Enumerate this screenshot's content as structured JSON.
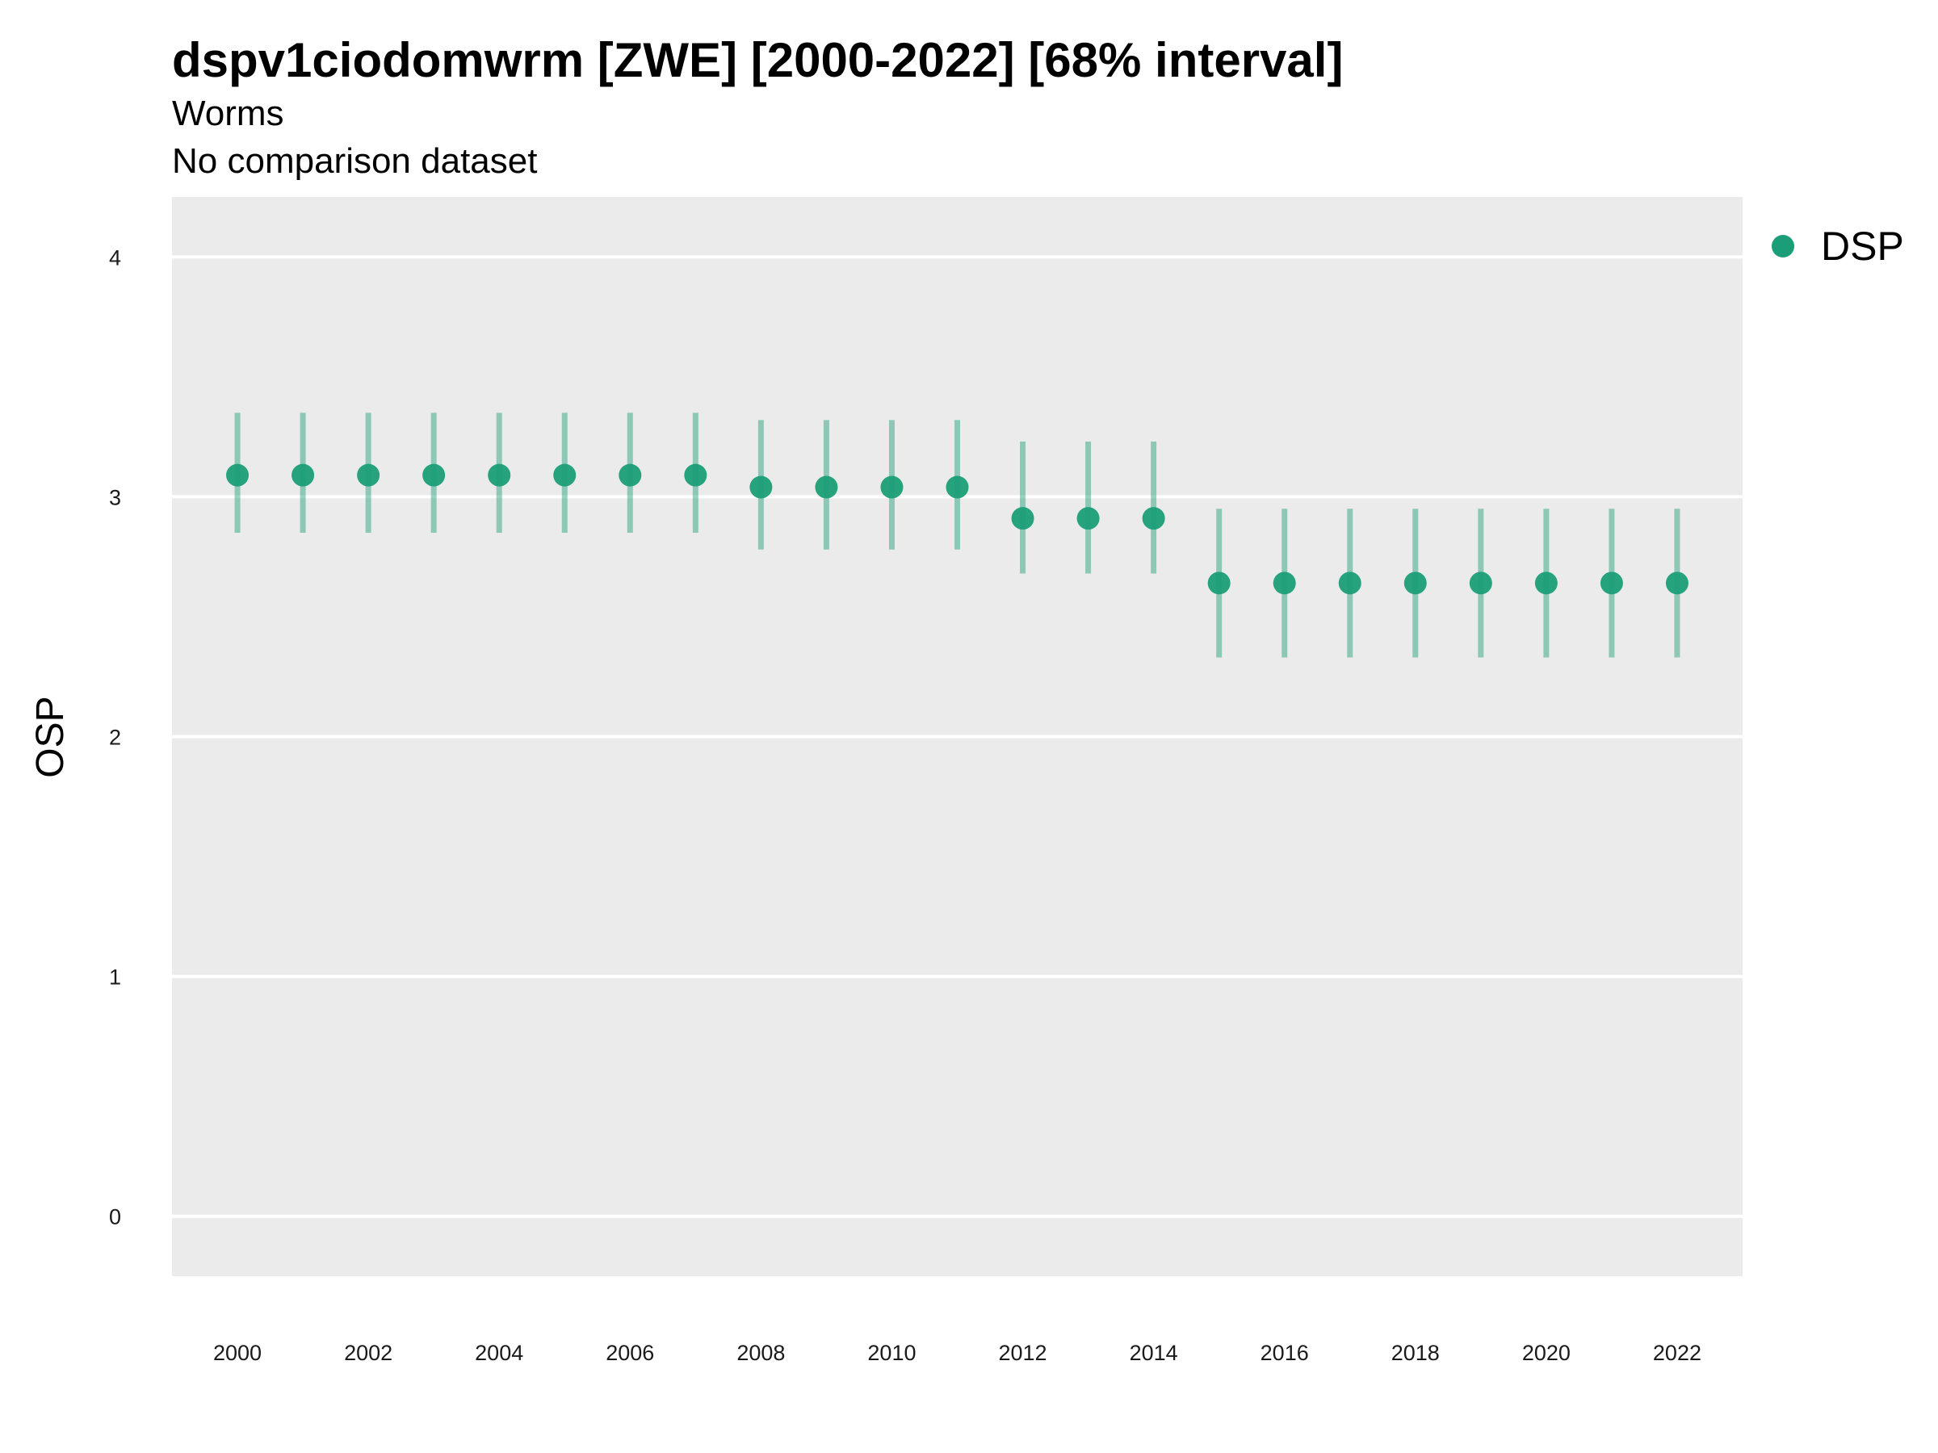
{
  "colors": {
    "panel": "#EBEBEB",
    "grid": "#FFFFFF",
    "series": "#1B9E77"
  },
  "chart_data": {
    "type": "scatter",
    "title": "dspv1ciodomwrm [ZWE] [2000-2022] [68% interval]",
    "subtitle": "Worms",
    "caption": "No comparison dataset",
    "ylabel": "OSP",
    "xlabel": "",
    "ylim": [
      -0.25,
      4.25
    ],
    "yticks": [
      0,
      1,
      2,
      3,
      4
    ],
    "xlim": [
      1999.0,
      2023.0
    ],
    "xticks": [
      2000,
      2002,
      2004,
      2006,
      2008,
      2010,
      2012,
      2014,
      2016,
      2018,
      2020,
      2022
    ],
    "grid": true,
    "legend_position": "right",
    "series": [
      {
        "name": "DSP",
        "x": [
          2000,
          2001,
          2002,
          2003,
          2004,
          2005,
          2006,
          2007,
          2008,
          2009,
          2010,
          2011,
          2012,
          2013,
          2014,
          2015,
          2016,
          2017,
          2018,
          2019,
          2020,
          2021,
          2022
        ],
        "y": [
          3.09,
          3.09,
          3.09,
          3.09,
          3.09,
          3.09,
          3.09,
          3.09,
          3.04,
          3.04,
          3.04,
          3.04,
          2.91,
          2.91,
          2.91,
          2.64,
          2.64,
          2.64,
          2.64,
          2.64,
          2.64,
          2.64,
          2.64
        ],
        "lower": [
          2.85,
          2.85,
          2.85,
          2.85,
          2.85,
          2.85,
          2.85,
          2.85,
          2.78,
          2.78,
          2.78,
          2.78,
          2.68,
          2.68,
          2.68,
          2.33,
          2.33,
          2.33,
          2.33,
          2.33,
          2.33,
          2.33,
          2.33
        ],
        "upper": [
          3.35,
          3.35,
          3.35,
          3.35,
          3.35,
          3.35,
          3.35,
          3.35,
          3.32,
          3.32,
          3.32,
          3.32,
          3.23,
          3.23,
          3.23,
          2.95,
          2.95,
          2.95,
          2.95,
          2.95,
          2.95,
          2.95,
          2.95
        ]
      }
    ]
  }
}
